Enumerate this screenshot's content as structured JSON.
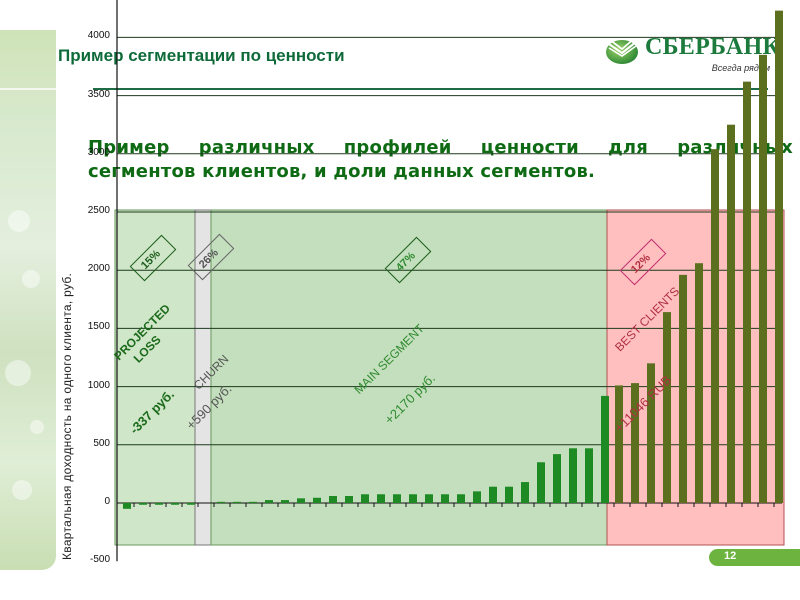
{
  "slide": {
    "title": "Пример сегментации по ценности",
    "subtitle_line1": "Пример различных профилей ценности для различных",
    "subtitle_line2": "сегментов клиентов, и доли данных сегментов.",
    "page_number": "12"
  },
  "logo": {
    "name": "СБЕРБАНК",
    "tagline": "Всегда рядом"
  },
  "colors": {
    "title_green": "#0f6a3a",
    "subtitle_green": "#0e6b14",
    "projected_loss_bg": "#cfe6c8",
    "churn_bg": "#e4e4e4",
    "main_segment_bg": "#c3dfbd",
    "best_clients_bg": "#ffbfbf",
    "bar_green": "#1e8a23",
    "bar_olive": "#5b6f1f",
    "page_badge": "#6db33f"
  },
  "chart_data": {
    "type": "bar",
    "title": "",
    "xlabel": "",
    "ylabel": "Квартальная доходность на одного клиента, руб.",
    "ylim": [
      -500,
      4500
    ],
    "yticks": [
      -500,
      0,
      500,
      1000,
      1500,
      2000,
      2500,
      3000,
      3500,
      4000,
      4500
    ],
    "grid": true,
    "legend": null,
    "segments": [
      {
        "name": "PROJECTED LOSS",
        "share": "15%",
        "value_label": "-337 руб.",
        "bar_count": 5
      },
      {
        "name": "CHURN",
        "share": "26%",
        "value_label": "+590 руб.",
        "bar_count": 0
      },
      {
        "name": "MAIN SEGMENT",
        "share": "47%",
        "value_label": "+2170 руб.",
        "bar_count": 25
      },
      {
        "name": "BEST CLIENTS",
        "share": "12%",
        "value_label": "+11046 RUB",
        "bar_count": 11
      }
    ],
    "series": [
      {
        "name": "PROJECTED LOSS",
        "values": [
          -50,
          -15,
          -15,
          -15,
          -15
        ]
      },
      {
        "name": "MAIN SEGMENT",
        "values": [
          10,
          10,
          10,
          25,
          25,
          40,
          45,
          60,
          60,
          75,
          75,
          75,
          75,
          75,
          75,
          75,
          100,
          140,
          140,
          180,
          350,
          420,
          470,
          470,
          920
        ]
      },
      {
        "name": "BEST CLIENTS",
        "values": [
          1010,
          1030,
          1200,
          1640,
          1960,
          2060,
          3040,
          3250,
          3620,
          3850,
          4230
        ]
      }
    ],
    "annotations": [
      "15%",
      "26%",
      "47%",
      "12%",
      "PROJECTED LOSS",
      "CHURN",
      "MAIN SEGMENT",
      "BEST CLIENTS",
      "-337 руб.",
      "+590 руб.",
      "+2170 руб.",
      "+11046 RUB"
    ]
  }
}
